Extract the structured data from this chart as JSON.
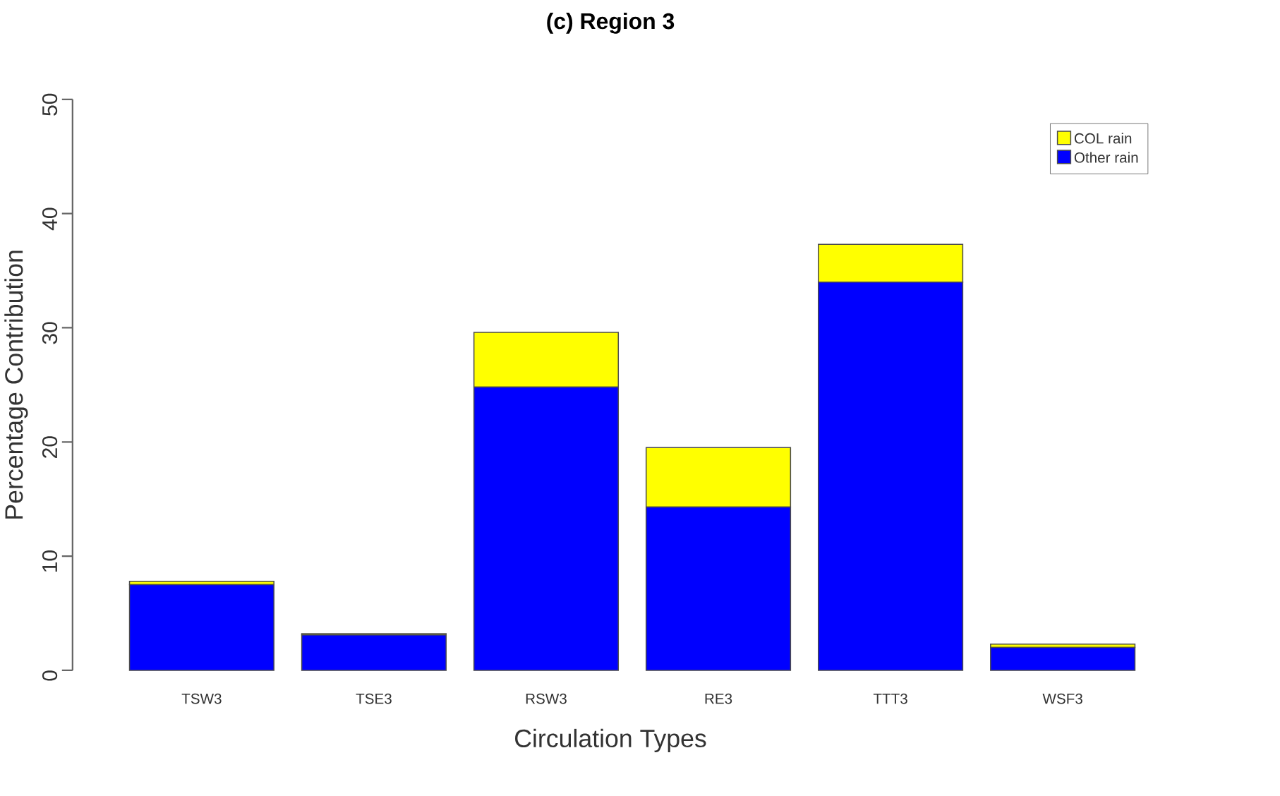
{
  "chart_data": {
    "type": "bar",
    "title": "(c) Region 3",
    "xlabel": "Circulation Types",
    "ylabel": "Percentage Contribution",
    "categories": [
      "TSW3",
      "TSE3",
      "RSW3",
      "RE3",
      "TTT3",
      "WSF3"
    ],
    "stacked": true,
    "series": [
      {
        "name": "Other rain",
        "color": "#0000ff",
        "values": [
          7.5,
          3.1,
          24.8,
          14.3,
          34.0,
          2.0
        ]
      },
      {
        "name": "COL rain",
        "color": "#ffff00",
        "values": [
          0.3,
          0.1,
          4.8,
          5.2,
          3.3,
          0.3
        ]
      }
    ],
    "ylim": [
      0,
      50
    ],
    "yticks": [
      0,
      10,
      20,
      30,
      40,
      50
    ],
    "grid": false,
    "legend": "top right"
  }
}
